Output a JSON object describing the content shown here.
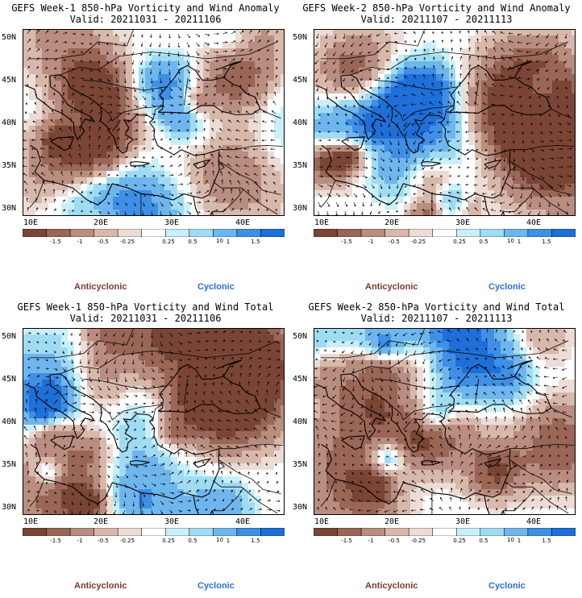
{
  "panels": [
    {
      "title_line1": "GEFS Week-1 850-hPa Vorticity and Wind Anomaly",
      "title_line2": "Valid: 20211031 - 20211106",
      "seed": 11
    },
    {
      "title_line1": "GEFS Week-2 850-hPa Vorticity and Wind Anomaly",
      "title_line2": "Valid: 20211107 - 20211113",
      "seed": 23
    },
    {
      "title_line1": "GEFS Week-1 850-hPa Vorticity and Wind Total",
      "title_line2": "Valid: 20211031 - 20211106",
      "seed": 37
    },
    {
      "title_line1": "GEFS Week-2 850-hPa Vorticity and Wind Total",
      "title_line2": "Valid: 20211107 - 20211113",
      "seed": 53
    }
  ],
  "map": {
    "lat_labels": [
      "50N",
      "45N",
      "40N",
      "35N",
      "30N"
    ],
    "lon_labels": [
      "10E",
      "20E",
      "30E",
      "40E"
    ],
    "lat_range": [
      29,
      51
    ],
    "lon_range": [
      8.5,
      45
    ]
  },
  "colorbar": {
    "labels": [
      "-1.5",
      "-1",
      "-0.5",
      "-0.25",
      "0.25",
      "0.5",
      "1",
      "1.5"
    ],
    "unit": "10",
    "colors": [
      "#7a4535",
      "#9a6656",
      "#b98d7f",
      "#d8b8ab",
      "#ecdcd5",
      "#ffffff",
      "#c9f0fa",
      "#9fdcf4",
      "#6fb6ee",
      "#3f8fe6",
      "#1f6fd8"
    ]
  },
  "legend": {
    "anticyclonic": "Anticyclonic",
    "cyclonic": "Cyclonic"
  }
}
